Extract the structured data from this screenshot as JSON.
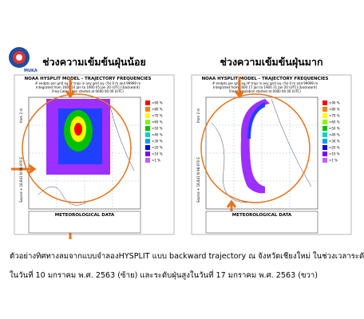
{
  "logo": {
    "text": "MUKA"
  },
  "panels": [
    {
      "heading": "ช่วงความเข้มข้นฝุ่นน้อย",
      "title": "NOAA HYSPLIT MODEL - TRAJECTORY FREQUENCIES",
      "lines": [
        "# endpts per grid sq./# trajs in any grid sq. (%)   0 m and 99999 m",
        "Integrated from 1600 10 Jan to 1900 05 Jan 20 (UTC) [backward]",
        "Freq Calculation started at 0600 00   00 (UTC)"
      ],
      "legend": [
        ">90 %",
        ">80 %",
        ">70 %",
        ">60 %",
        ">50 %",
        ">40 %",
        ">30 %",
        ">20 %",
        ">10 %",
        ">1 %"
      ],
      "source": "Source ✶ 18.841 N 98.970 E",
      "height": "from 2 m",
      "footer": "METEOROLOGICAL DATA"
    },
    {
      "heading": "ช่วงความเข้มข้นฝุ่นมาก",
      "title": "NOAA HYSPLIT MODEL - TRAJECTORY FREQUENCIES",
      "lines": [
        "# endpts per grid sq./# trajs in any grid sq. (%)   0 m and 99999 m",
        "Integrated from 1600 17 Jan to 1900 11 Jan 20 (UTC) [backward]",
        "Freq Calculation started at 0000 00   00 (UTC)"
      ],
      "legend": [
        ">90 %",
        ">80 %",
        ">70 %",
        ">60 %",
        ">50 %",
        ">40 %",
        ">30 %",
        ">20 %",
        ">10 %",
        ">1 %"
      ],
      "source": "Source ✶ 18.841 N 98.970 E",
      "height": "from 2 m",
      "footer": "METEOROLOGICAL DATA"
    }
  ],
  "caption": [
    "ตัวอย่างทิศทางลมจากแบบจำลองHYSPLIT แบบ backward trajectory ณ จังหวัดเชียงใหม่ ในช่วงเวลาระดับฝุ่นต่ำ",
    "ในวันที่ 10 มกราคม พ.ศ. 2563 (ซ้าย) และระดับฝุ่นสูงในวันที่ 17 มกราคม พ.ศ. 2563 (ขวา)"
  ]
}
